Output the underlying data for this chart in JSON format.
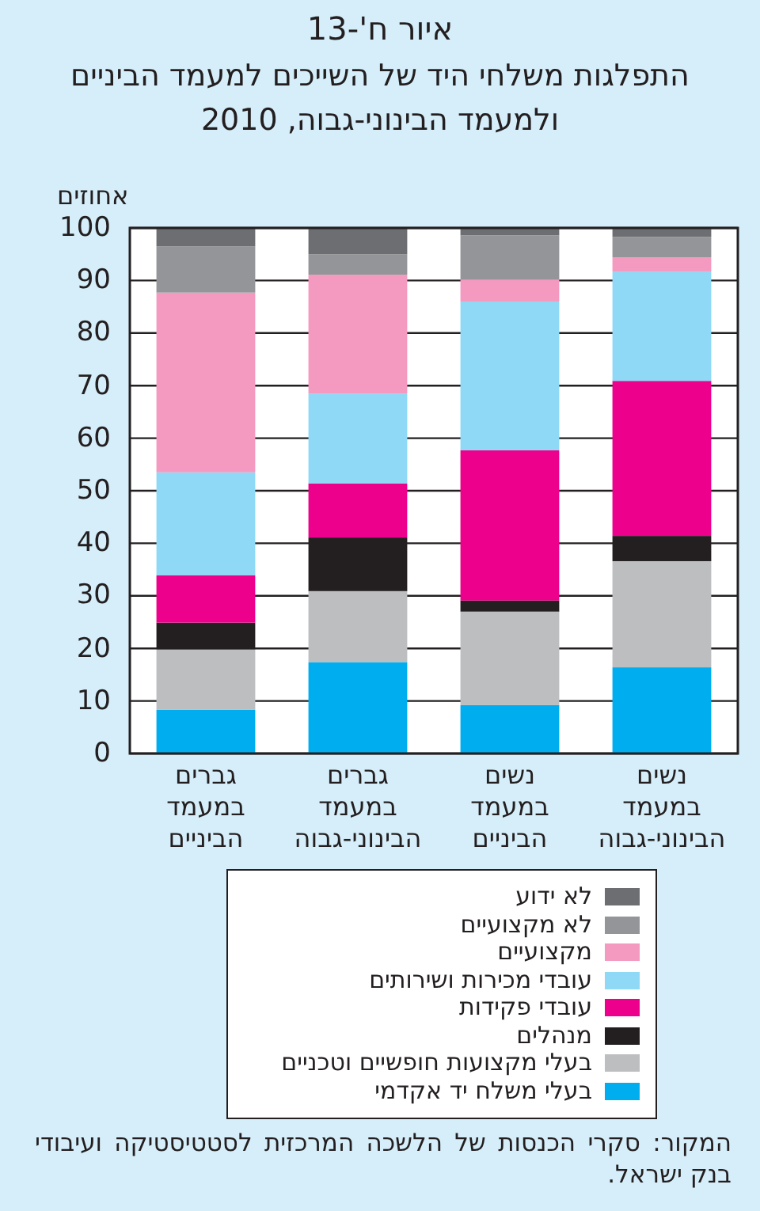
{
  "chart_data": {
    "type": "bar",
    "title": "איור ח'-13",
    "subtitle": "התפלגות משלחי היד של השייכים למעמד הביניים ולמעמד הבינוני-גבוה, 2010",
    "ylabel": "אחוזים",
    "categories": [
      "גברים במעמד הביניים",
      "גברים במעמד הבינוני-גבוה",
      "נשים במעמד הביניים",
      "נשים במעמד הבינוני-גבוה"
    ],
    "stacked": true,
    "series": [
      {
        "name": "בעלי משלח יד אקדמי",
        "color": "#00aeef",
        "values": [
          8.3,
          17.4,
          9.2,
          16.4
        ]
      },
      {
        "name": "בעלי מקצועות חופשיים וטכניים",
        "color": "#bcbec0",
        "values": [
          11.5,
          13.5,
          17.8,
          20.2
        ]
      },
      {
        "name": "מנהלים",
        "color": "#231f20",
        "values": [
          5.1,
          10.2,
          2.1,
          4.8
        ]
      },
      {
        "name": "עובדי פקידות",
        "color": "#ec008c",
        "values": [
          9.0,
          10.3,
          28.6,
          29.5
        ]
      },
      {
        "name": "עובדי מכירות ושירותים",
        "color": "#8fd8f6",
        "values": [
          19.6,
          17.1,
          28.3,
          20.8
        ]
      },
      {
        "name": "מקצועיים",
        "color": "#f49ac1",
        "values": [
          34.2,
          22.6,
          4.2,
          2.7
        ]
      },
      {
        "name": "לא מקצועיים",
        "color": "#939598",
        "values": [
          8.8,
          3.9,
          8.4,
          3.9
        ]
      },
      {
        "name": "לא ידוע",
        "color": "#6d6e71",
        "values": [
          3.5,
          5.0,
          1.4,
          1.7
        ]
      }
    ],
    "ylim": [
      0,
      100
    ],
    "yticks": [
      0,
      10,
      20,
      30,
      40,
      50,
      60,
      70,
      80,
      90,
      100
    ],
    "grid": "y",
    "legend": "bottom",
    "annotations": [
      "המקור: סקרי הכנסות של הלשכה המרכזית לסטטיסטיקה ועיבודי בנק ישראל."
    ]
  }
}
